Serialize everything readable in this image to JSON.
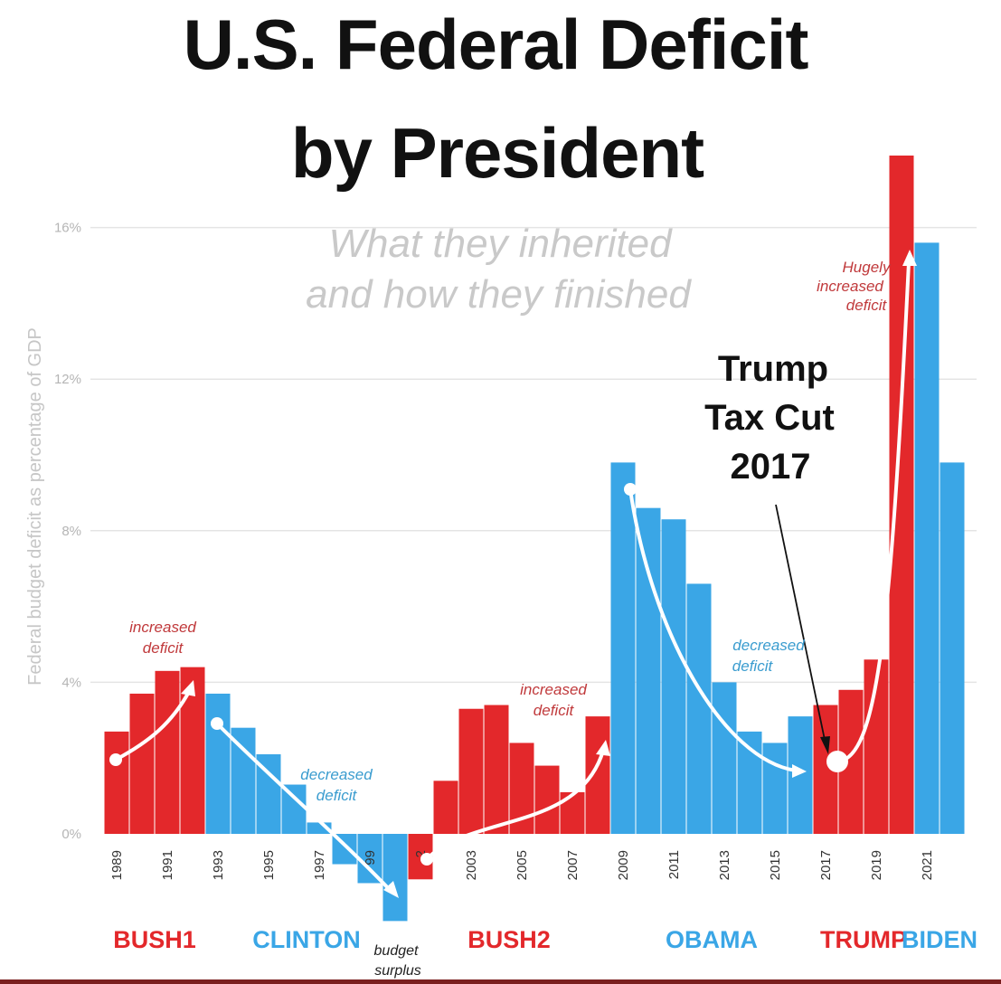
{
  "colors": {
    "republican": "#e3282b",
    "democrat": "#3aa6e6",
    "border_red": "#7a1f1f"
  },
  "chart_data": {
    "type": "bar",
    "title_lines": [
      "U.S. Federal Deficit",
      "by President"
    ],
    "subtitle_lines": [
      "What they inherited",
      "and how they finished"
    ],
    "ylabel": "Federal budget deficit as percentage of GDP",
    "ylim": [
      -2,
      18
    ],
    "yticks": [
      {
        "value": 16,
        "label": "16%"
      },
      {
        "value": 12,
        "label": "12%"
      },
      {
        "value": 8,
        "label": "8%"
      },
      {
        "value": 4,
        "label": "4%"
      },
      {
        "value": 0,
        "label": "0%"
      }
    ],
    "x_tick_labels": [
      {
        "year": 1989,
        "label": "1989"
      },
      {
        "year": 1991,
        "label": "1991"
      },
      {
        "year": 1993,
        "label": "1993"
      },
      {
        "year": 1995,
        "label": "1995"
      },
      {
        "year": 1997,
        "label": "1997"
      },
      {
        "year": 1999,
        "label": "99"
      },
      {
        "year": 2001,
        "label": "2"
      },
      {
        "year": 2003,
        "label": "2003"
      },
      {
        "year": 2005,
        "label": "2005"
      },
      {
        "year": 2007,
        "label": "2007"
      },
      {
        "year": 2009,
        "label": "2009"
      },
      {
        "year": 2011,
        "label": "2011"
      },
      {
        "year": 2013,
        "label": "2013"
      },
      {
        "year": 2015,
        "label": "2015"
      },
      {
        "year": 2017,
        "label": "2017"
      },
      {
        "year": 2019,
        "label": "2019"
      },
      {
        "year": 2021,
        "label": "2021"
      }
    ],
    "bars": [
      {
        "year": 1989,
        "value": 2.7,
        "party": "R"
      },
      {
        "year": 1990,
        "value": 3.7,
        "party": "R"
      },
      {
        "year": 1991,
        "value": 4.3,
        "party": "R"
      },
      {
        "year": 1992,
        "value": 4.4,
        "party": "R"
      },
      {
        "year": 1993,
        "value": 3.7,
        "party": "D"
      },
      {
        "year": 1994,
        "value": 2.8,
        "party": "D"
      },
      {
        "year": 1995,
        "value": 2.1,
        "party": "D"
      },
      {
        "year": 1996,
        "value": 1.3,
        "party": "D"
      },
      {
        "year": 1997,
        "value": 0.3,
        "party": "D"
      },
      {
        "year": 1998,
        "value": -0.8,
        "party": "D"
      },
      {
        "year": 1999,
        "value": -1.3,
        "party": "D"
      },
      {
        "year": 2000,
        "value": -2.3,
        "party": "D"
      },
      {
        "year": 2001,
        "value": -1.2,
        "party": "R"
      },
      {
        "year": 2002,
        "value": 1.4,
        "party": "R"
      },
      {
        "year": 2003,
        "value": 3.3,
        "party": "R"
      },
      {
        "year": 2004,
        "value": 3.4,
        "party": "R"
      },
      {
        "year": 2005,
        "value": 2.4,
        "party": "R"
      },
      {
        "year": 2006,
        "value": 1.8,
        "party": "R"
      },
      {
        "year": 2007,
        "value": 1.1,
        "party": "R"
      },
      {
        "year": 2008,
        "value": 3.1,
        "party": "R"
      },
      {
        "year": 2009,
        "value": 9.8,
        "party": "D"
      },
      {
        "year": 2010,
        "value": 8.6,
        "party": "D"
      },
      {
        "year": 2011,
        "value": 8.3,
        "party": "D"
      },
      {
        "year": 2012,
        "value": 6.6,
        "party": "D"
      },
      {
        "year": 2013,
        "value": 4.0,
        "party": "D"
      },
      {
        "year": 2014,
        "value": 2.7,
        "party": "D"
      },
      {
        "year": 2015,
        "value": 2.4,
        "party": "D"
      },
      {
        "year": 2016,
        "value": 3.1,
        "party": "D"
      },
      {
        "year": 2017,
        "value": 3.4,
        "party": "R"
      },
      {
        "year": 2018,
        "value": 3.8,
        "party": "R"
      },
      {
        "year": 2019,
        "value": 4.6,
        "party": "R"
      },
      {
        "year": 2020,
        "value": 17.9,
        "party": "R"
      },
      {
        "year": 2021,
        "value": 15.6,
        "party": "D"
      },
      {
        "year": 2022,
        "value": 9.8,
        "party": "D"
      }
    ],
    "presidents": [
      {
        "name": "BUSH1",
        "party": "R"
      },
      {
        "name": "CLINTON",
        "party": "D"
      },
      {
        "name": "BUSH2",
        "party": "R"
      },
      {
        "name": "OBAMA",
        "party": "D"
      },
      {
        "name": "TRUMP",
        "party": "R"
      },
      {
        "name": "BIDEN",
        "party": "D"
      }
    ],
    "annotations": {
      "bush1": {
        "lines": [
          "increased",
          "deficit"
        ]
      },
      "clinton": {
        "lines": [
          "decreased",
          "deficit"
        ]
      },
      "surplus": {
        "lines": [
          "budget",
          "surplus"
        ]
      },
      "bush2": {
        "lines": [
          "increased",
          "deficit"
        ]
      },
      "obama": {
        "lines": [
          "decreased",
          "deficit"
        ]
      },
      "trump": {
        "lines": [
          "Hugely",
          "increased",
          "deficit"
        ]
      },
      "tax_cut": {
        "lines": [
          "Trump",
          "Tax Cut",
          "2017"
        ]
      }
    }
  }
}
